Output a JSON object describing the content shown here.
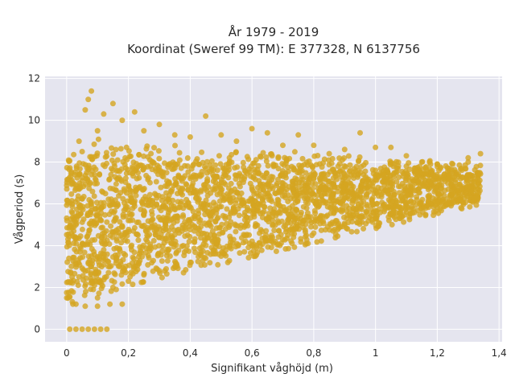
{
  "chart_data": {
    "type": "scatter",
    "title": "År 1979 - 2019",
    "subtitle": "Koordinat (Sweref 99 TM): E 377328, N 6137756",
    "xlabel": "Signifikant våghöjd (m)",
    "ylabel": "Vågperiod (s)",
    "xlim": [
      -0.07,
      1.41
    ],
    "ylim": [
      -0.6,
      12.1
    ],
    "x_ticks": [
      0,
      0.2,
      0.4,
      0.6,
      0.8,
      1,
      1.2,
      1.4
    ],
    "x_tick_labels": [
      "0",
      "0,2",
      "0,4",
      "0,6",
      "0,8",
      "1",
      "1,2",
      "1,4"
    ],
    "y_ticks": [
      0,
      2,
      4,
      6,
      8,
      10,
      12
    ],
    "y_tick_labels": [
      "0",
      "2",
      "4",
      "6",
      "8",
      "10",
      "12"
    ],
    "grid": true,
    "colors": {
      "marker": "#d4a520",
      "plot_bg": "#e5e5ef",
      "grid": "#ffffff"
    },
    "series": [
      {
        "name": "",
        "points": [
          [
            0.01,
            0
          ],
          [
            0.03,
            0
          ],
          [
            0.05,
            0
          ],
          [
            0.07,
            0
          ],
          [
            0.09,
            0
          ],
          [
            0.11,
            0
          ],
          [
            0.13,
            0
          ],
          [
            0.0,
            1.5
          ],
          [
            0.03,
            1.2
          ],
          [
            0.06,
            1.1
          ],
          [
            0.1,
            1.1
          ],
          [
            0.14,
            1.2
          ],
          [
            0.18,
            1.2
          ],
          [
            0.04,
            2.5
          ],
          [
            0.08,
            3.0
          ],
          [
            0.12,
            3.8
          ],
          [
            0.16,
            4.6
          ],
          [
            0.2,
            5.2
          ],
          [
            0.25,
            5.5
          ],
          [
            0.3,
            5.8
          ],
          [
            0.36,
            6.1
          ],
          [
            0.42,
            6.3
          ],
          [
            0.5,
            6.6
          ],
          [
            0.6,
            6.8
          ],
          [
            0.7,
            7.0
          ],
          [
            0.8,
            7.2
          ],
          [
            0.9,
            7.4
          ],
          [
            1.0,
            7.6
          ],
          [
            1.1,
            7.8
          ],
          [
            1.2,
            7.9
          ],
          [
            1.3,
            8.2
          ],
          [
            1.34,
            8.4
          ],
          [
            0.03,
            5.0
          ],
          [
            0.02,
            7.0
          ],
          [
            0.04,
            9.0
          ],
          [
            0.06,
            10.5
          ],
          [
            0.07,
            11.0
          ],
          [
            0.08,
            11.4
          ],
          [
            0.05,
            8.5
          ],
          [
            0.1,
            9.5
          ],
          [
            0.12,
            10.3
          ],
          [
            0.15,
            10.8
          ],
          [
            0.18,
            10.0
          ],
          [
            0.22,
            10.4
          ],
          [
            0.25,
            9.5
          ],
          [
            0.3,
            9.8
          ],
          [
            0.35,
            9.3
          ],
          [
            0.4,
            9.2
          ],
          [
            0.45,
            10.2
          ],
          [
            0.5,
            9.3
          ],
          [
            0.55,
            9.0
          ],
          [
            0.6,
            9.6
          ],
          [
            0.65,
            9.4
          ],
          [
            0.7,
            8.8
          ],
          [
            0.75,
            9.3
          ],
          [
            0.8,
            8.8
          ],
          [
            0.85,
            8.4
          ],
          [
            0.9,
            8.6
          ],
          [
            0.95,
            9.4
          ],
          [
            1.0,
            8.7
          ],
          [
            1.05,
            8.7
          ],
          [
            1.1,
            8.3
          ],
          [
            1.15,
            8.0
          ],
          [
            1.2,
            7.9
          ],
          [
            1.25,
            7.9
          ],
          [
            1.3,
            8.0
          ],
          [
            0.1,
            1.5
          ],
          [
            0.15,
            2.0
          ],
          [
            0.2,
            2.3
          ],
          [
            0.25,
            2.6
          ],
          [
            0.3,
            2.8
          ],
          [
            0.35,
            3.0
          ],
          [
            0.4,
            3.2
          ],
          [
            0.45,
            3.4
          ],
          [
            0.5,
            3.5
          ],
          [
            0.6,
            4.0
          ],
          [
            0.7,
            4.3
          ],
          [
            0.8,
            4.6
          ],
          [
            0.9,
            5.0
          ],
          [
            1.0,
            5.3
          ],
          [
            1.1,
            5.6
          ],
          [
            1.2,
            6.0
          ],
          [
            1.28,
            6.7
          ]
        ]
      }
    ]
  }
}
